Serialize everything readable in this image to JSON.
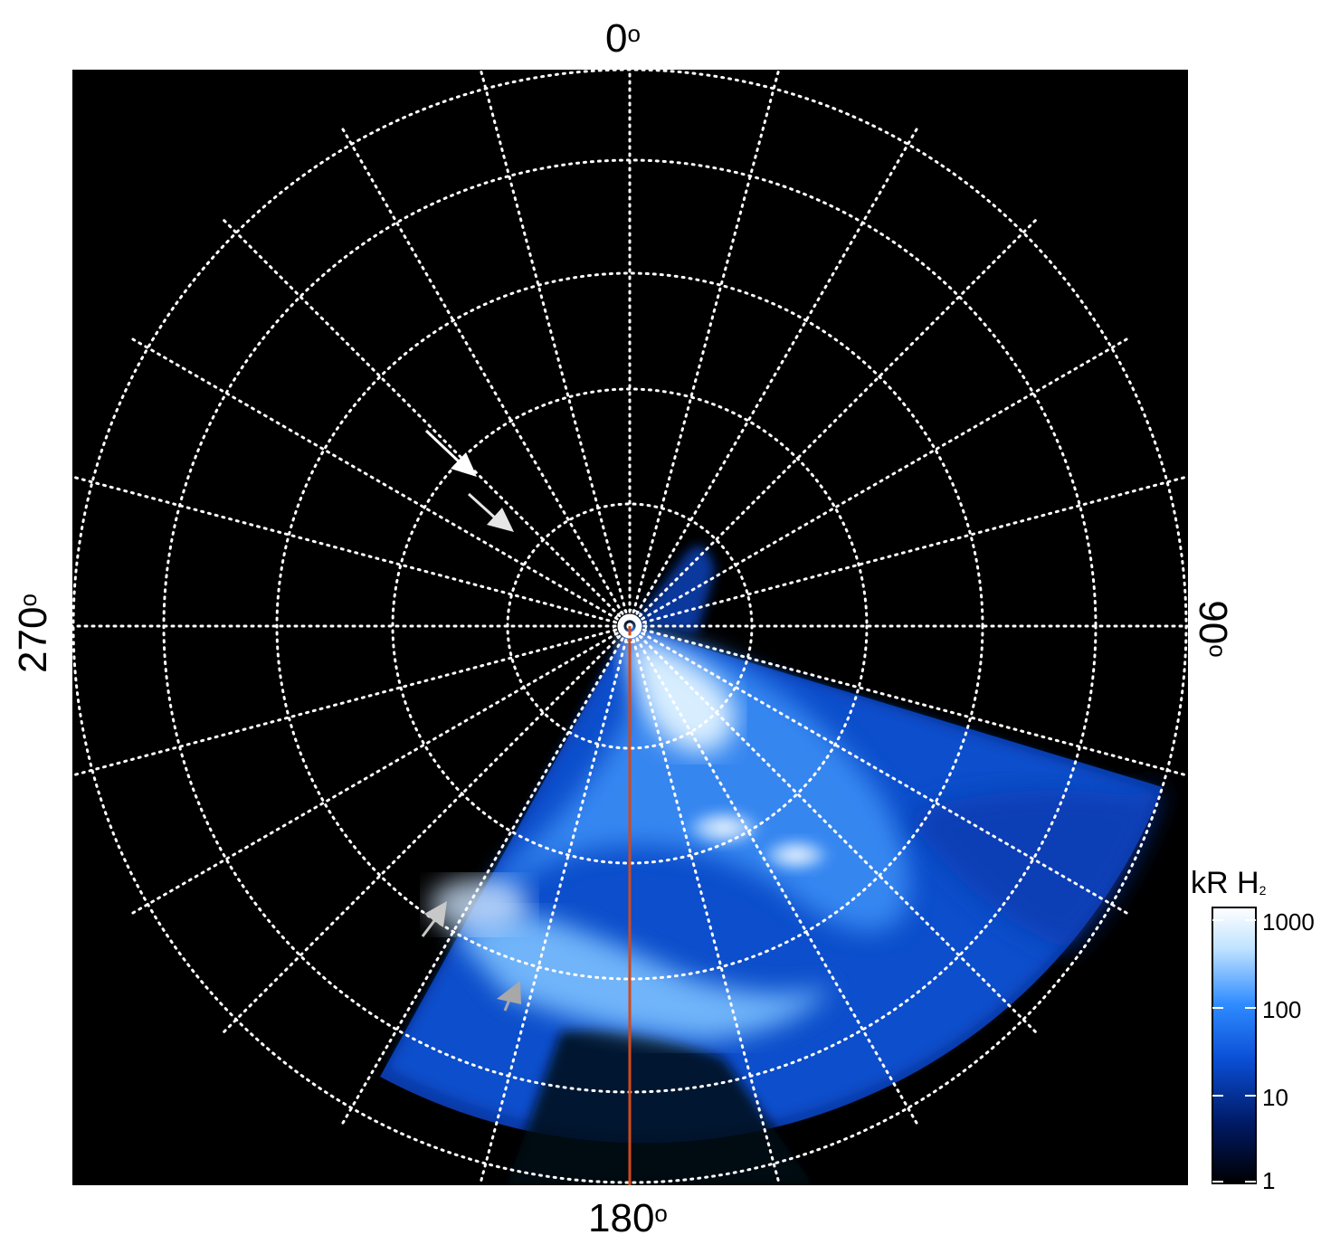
{
  "longitude_labels": {
    "top": "0",
    "bottom": "180",
    "left": "270",
    "right": "90",
    "degree_symbol": "o"
  },
  "colorbar": {
    "title": "kR H",
    "title_subscript": "2",
    "ticks": [
      "1000",
      "100",
      "10",
      "1"
    ],
    "scale": "log",
    "colors": [
      "#000000",
      "#001a66",
      "#0a4fd6",
      "#2f8cff",
      "#bfe2ff",
      "#ffffff"
    ]
  },
  "image_description_colors": {
    "background": "#000000",
    "grid": "#ffffff",
    "meridian_line": "#d24a1a",
    "arrow_white": "#ffffff",
    "arrow_gray": "#c8c8c8"
  }
}
